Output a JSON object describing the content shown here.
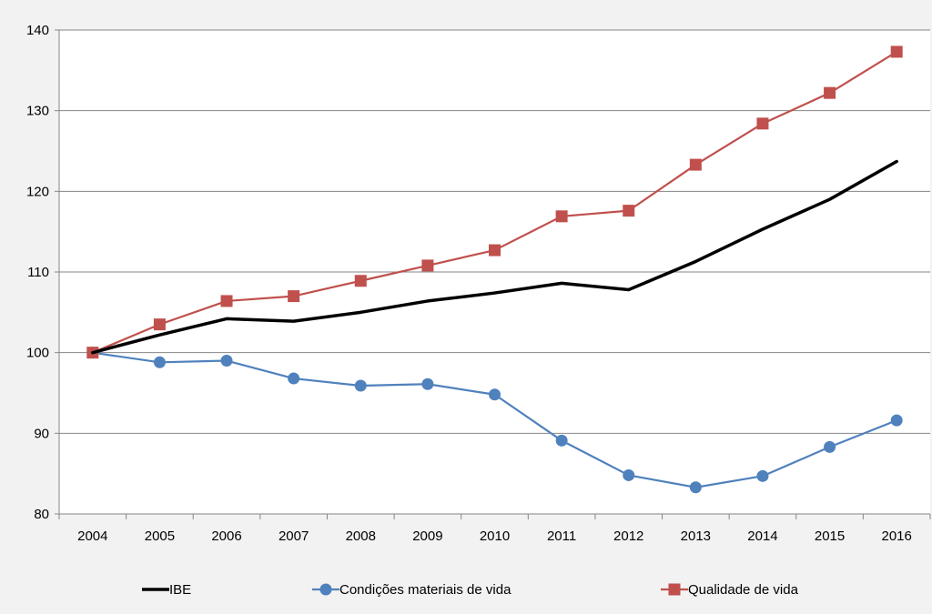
{
  "chart_data": {
    "type": "line",
    "title": "",
    "xlabel": "",
    "ylabel": "",
    "categories": [
      "2004",
      "2005",
      "2006",
      "2007",
      "2008",
      "2009",
      "2010",
      "2011",
      "2012",
      "2013",
      "2014",
      "2015",
      "2016"
    ],
    "ylim": [
      80,
      140
    ],
    "yticks": [
      80,
      90,
      100,
      110,
      120,
      130,
      140
    ],
    "grid": "horizontal",
    "legend_position": "bottom",
    "series": [
      {
        "name": "IBE",
        "color": "#000000",
        "marker": "none",
        "values": [
          100,
          102.2,
          104.2,
          103.9,
          105.0,
          106.4,
          107.4,
          108.6,
          107.8,
          111.3,
          115.3,
          119.0,
          123.7
        ]
      },
      {
        "name": "Condições materiais de vida",
        "color": "#4f81bd",
        "marker": "circle",
        "values": [
          100,
          98.8,
          99.0,
          96.8,
          95.9,
          96.1,
          94.8,
          89.1,
          84.8,
          83.3,
          84.7,
          88.3,
          91.6
        ]
      },
      {
        "name": "Qualidade de vida",
        "color": "#c0504d",
        "marker": "square",
        "values": [
          100,
          103.5,
          106.4,
          107.0,
          108.9,
          110.8,
          112.7,
          116.9,
          117.6,
          123.3,
          128.4,
          132.2,
          137.3
        ]
      }
    ]
  }
}
